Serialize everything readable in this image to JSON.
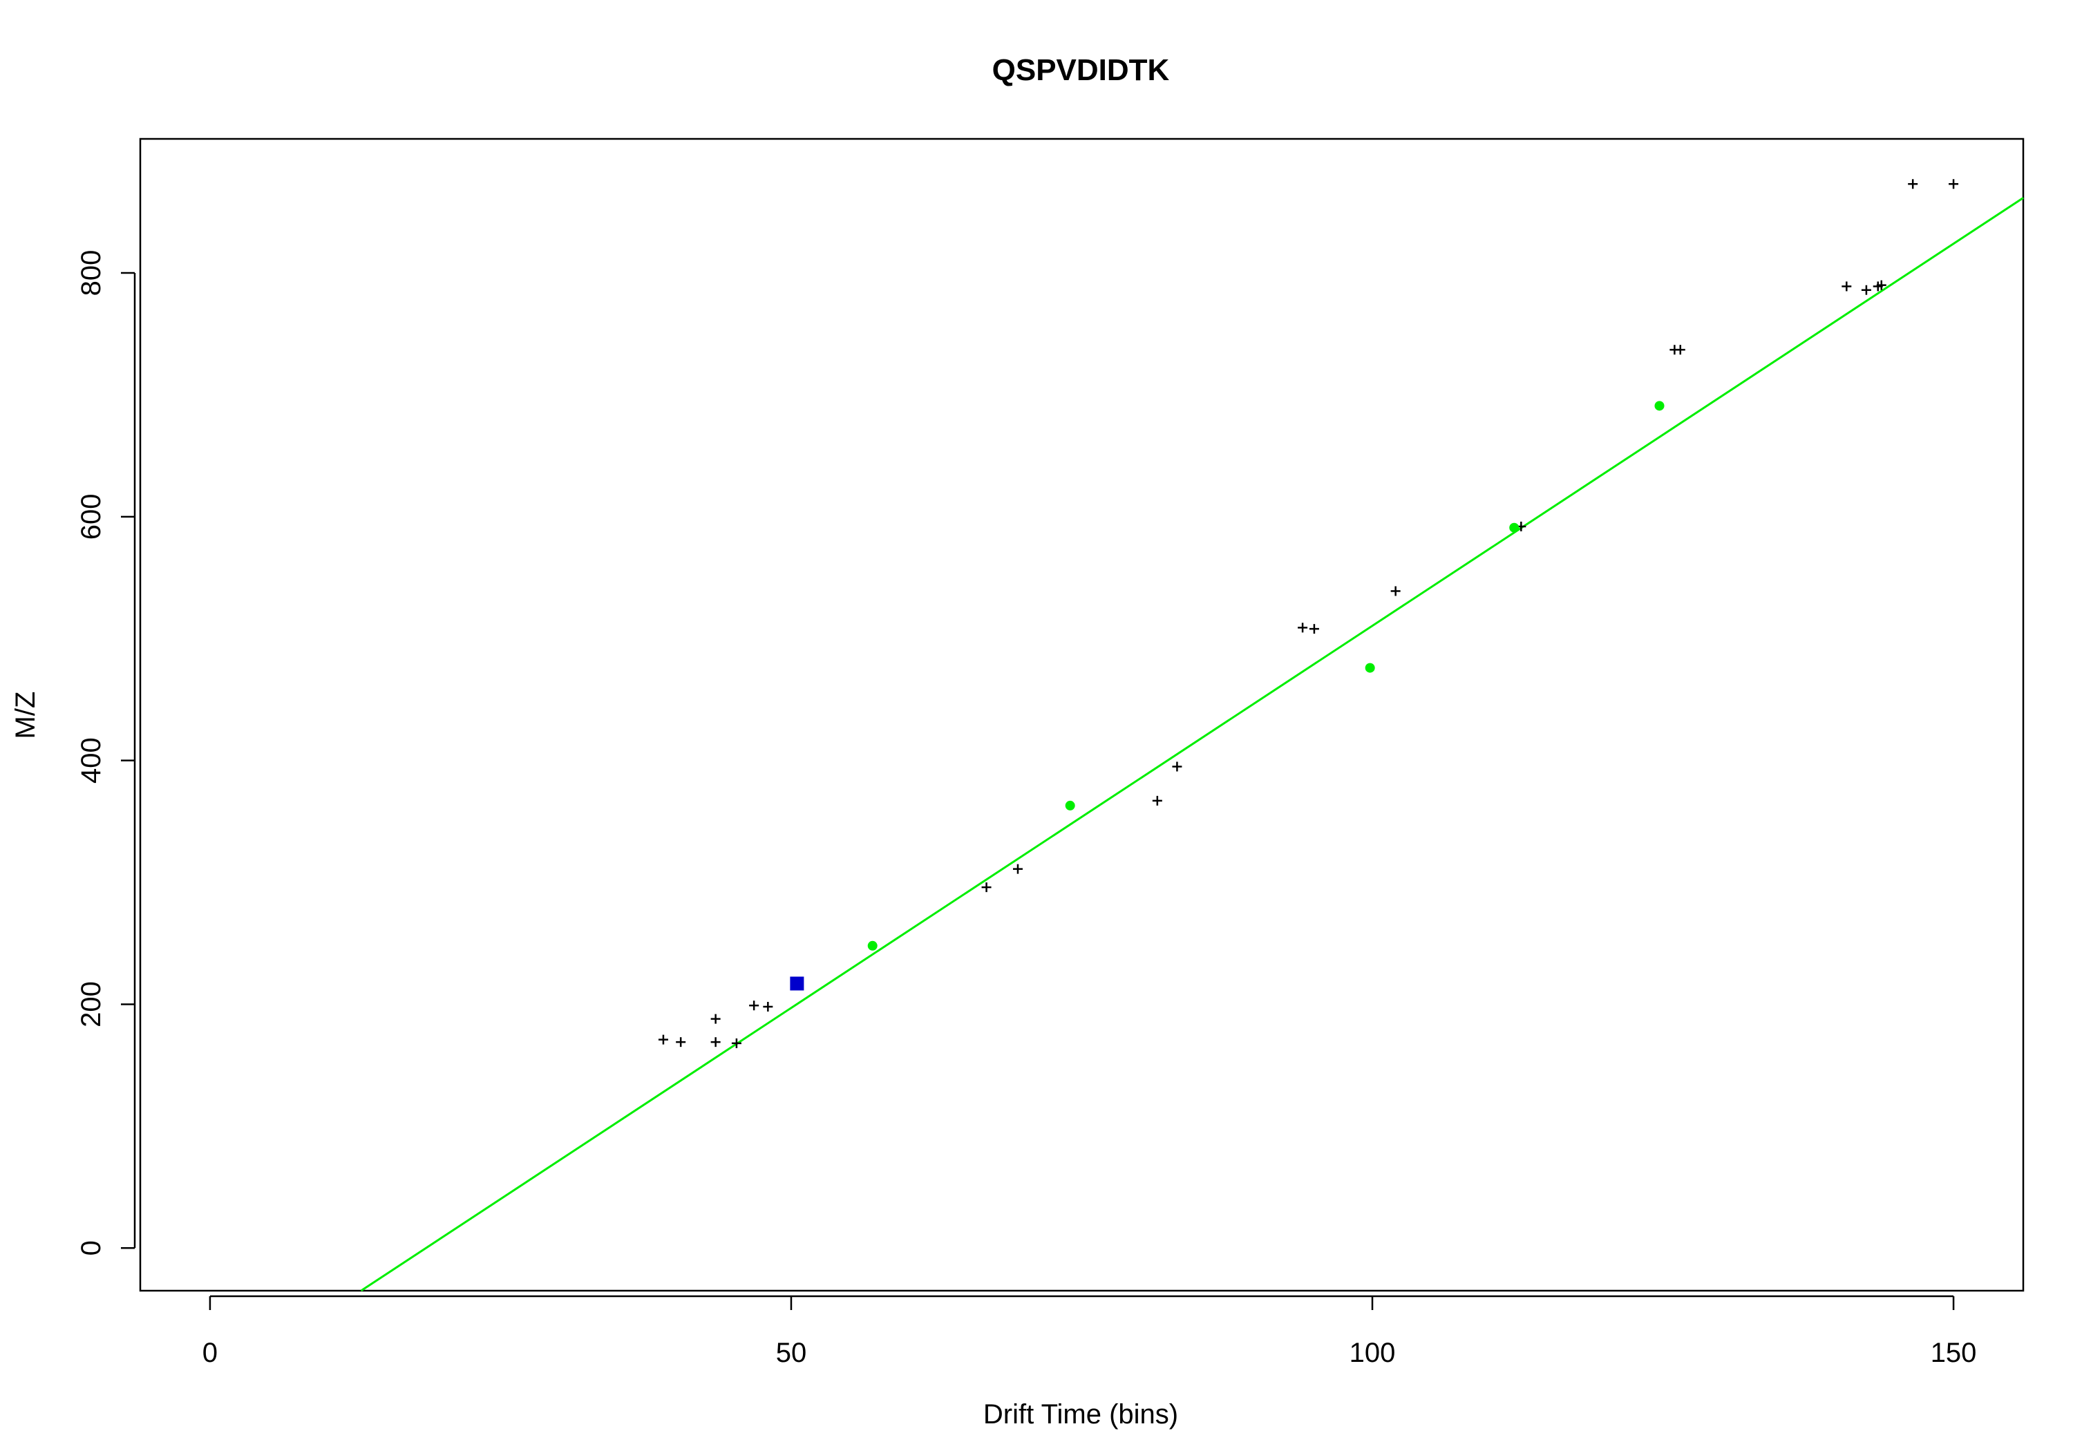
{
  "chart_data": {
    "type": "scatter",
    "title": "QSPVDIDTK",
    "xlabel": "Drift Time (bins)",
    "ylabel": "M/Z",
    "xlim": [
      -6,
      156
    ],
    "ylim": [
      -35,
      910
    ],
    "xticks": [
      0,
      50,
      100,
      150
    ],
    "yticks": [
      0,
      200,
      400,
      600,
      800
    ],
    "grid": false,
    "legend": "none",
    "colors": {
      "fit_line": "#00ee00",
      "matched": "#00ee00",
      "query": "#0000cc",
      "candidate": "#000000"
    },
    "series": [
      {
        "marker": "cross",
        "color": "#000000",
        "points": [
          [
            39.0,
            171
          ],
          [
            40.5,
            169
          ],
          [
            43.5,
            169
          ],
          [
            43.5,
            188
          ],
          [
            45.3,
            168
          ],
          [
            46.8,
            199
          ],
          [
            48.0,
            198
          ],
          [
            66.8,
            296
          ],
          [
            69.5,
            311
          ],
          [
            81.5,
            367
          ],
          [
            83.2,
            395
          ],
          [
            94.0,
            509
          ],
          [
            95.0,
            508
          ],
          [
            102.0,
            539
          ],
          [
            112.8,
            592
          ],
          [
            126.0,
            737
          ],
          [
            126.5,
            737
          ],
          [
            140.8,
            789
          ],
          [
            142.5,
            786
          ],
          [
            143.5,
            789
          ],
          [
            143.8,
            790
          ],
          [
            146.5,
            873
          ],
          [
            150.0,
            873
          ]
        ]
      },
      {
        "marker": "circle",
        "color": "#00ee00",
        "points": [
          [
            57.0,
            248
          ],
          [
            74.0,
            363
          ],
          [
            99.8,
            476
          ],
          [
            112.2,
            591
          ],
          [
            124.7,
            691
          ]
        ]
      },
      {
        "marker": "square",
        "color": "#0000cc",
        "points": [
          [
            50.5,
            217
          ]
        ]
      }
    ],
    "line": {
      "color": "#00ee00",
      "slope": 6.27,
      "intercept": -116.5
    }
  }
}
